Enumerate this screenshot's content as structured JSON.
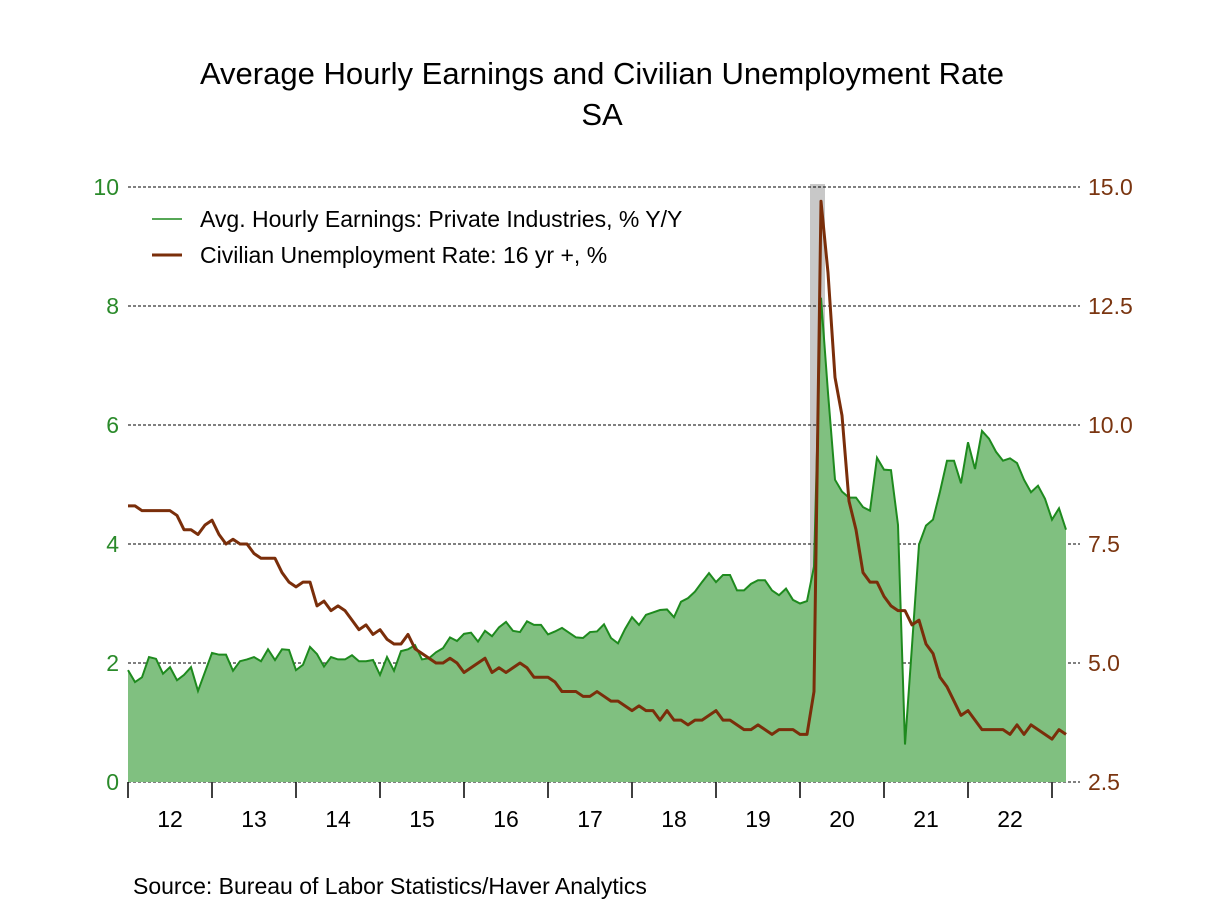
{
  "chart_data": {
    "type": "area+line",
    "title": "Average Hourly Earnings and Civilian Unemployment Rate",
    "subtitle": "SA",
    "source": "Source:  Bureau of Labor Statistics/Haver Analytics",
    "x_start": "2012-01",
    "frequency": "monthly",
    "x_tick_labels": [
      "12",
      "13",
      "14",
      "15",
      "16",
      "17",
      "18",
      "19",
      "20",
      "21",
      "22"
    ],
    "recession_shading": [
      "2020-02",
      "2020-04"
    ],
    "left_axis": {
      "ylim": [
        0,
        10
      ],
      "ticks": [
        "0",
        "2",
        "4",
        "6",
        "8",
        "10"
      ],
      "color": "#2a8a2a"
    },
    "right_axis": {
      "ylim": [
        2.5,
        15.0
      ],
      "ticks": [
        "2.5",
        "5.0",
        "7.5",
        "10.0",
        "12.5",
        "15.0"
      ],
      "color": "#7a3510"
    },
    "grid": "horizontal dashed",
    "legend_placement": "top-left",
    "series": [
      {
        "name": "Avg. Hourly Earnings: Private Industries, % Y/Y",
        "axis": "left",
        "style": "area",
        "color": "#1e8a1e",
        "fill": "#80c080",
        "values": [
          1.88,
          1.68,
          1.76,
          2.1,
          2.07,
          1.82,
          1.93,
          1.71,
          1.8,
          1.93,
          1.53,
          1.85,
          2.17,
          2.14,
          2.14,
          1.87,
          2.03,
          2.06,
          2.1,
          2.03,
          2.23,
          2.05,
          2.23,
          2.22,
          1.88,
          1.97,
          2.27,
          2.15,
          1.94,
          2.1,
          2.06,
          2.06,
          2.13,
          2.03,
          2.03,
          2.05,
          1.8,
          2.1,
          1.87,
          2.2,
          2.23,
          2.3,
          2.06,
          2.08,
          2.18,
          2.25,
          2.43,
          2.37,
          2.49,
          2.51,
          2.36,
          2.54,
          2.45,
          2.6,
          2.69,
          2.54,
          2.52,
          2.7,
          2.64,
          2.64,
          2.48,
          2.53,
          2.59,
          2.51,
          2.43,
          2.42,
          2.52,
          2.53,
          2.65,
          2.42,
          2.33,
          2.57,
          2.77,
          2.64,
          2.81,
          2.85,
          2.89,
          2.9,
          2.77,
          3.03,
          3.09,
          3.2,
          3.36,
          3.51,
          3.36,
          3.48,
          3.48,
          3.22,
          3.22,
          3.33,
          3.39,
          3.39,
          3.22,
          3.14,
          3.25,
          3.06,
          3.0,
          3.04,
          3.62,
          8.14,
          6.54,
          5.08,
          4.88,
          4.78,
          4.78,
          4.62,
          4.56,
          5.45,
          5.25,
          5.24,
          4.32,
          0.63,
          2.29,
          3.99,
          4.31,
          4.41,
          4.88,
          5.4,
          5.4,
          5.02,
          5.71,
          5.26,
          5.9,
          5.77,
          5.55,
          5.4,
          5.44,
          5.36,
          5.08,
          4.87,
          4.98,
          4.76,
          4.41,
          4.6,
          4.24
        ]
      },
      {
        "name": "Civilian Unemployment Rate: 16 yr +, %",
        "axis": "right",
        "style": "line",
        "color": "#7a2e0a",
        "values": [
          8.3,
          8.3,
          8.2,
          8.2,
          8.2,
          8.2,
          8.2,
          8.1,
          7.8,
          7.8,
          7.7,
          7.9,
          8.0,
          7.7,
          7.5,
          7.6,
          7.5,
          7.5,
          7.3,
          7.2,
          7.2,
          7.2,
          6.9,
          6.7,
          6.6,
          6.7,
          6.7,
          6.2,
          6.3,
          6.1,
          6.2,
          6.1,
          5.9,
          5.7,
          5.8,
          5.6,
          5.7,
          5.5,
          5.4,
          5.4,
          5.6,
          5.3,
          5.2,
          5.1,
          5.0,
          5.0,
          5.1,
          5.0,
          4.8,
          4.9,
          5.0,
          5.1,
          4.8,
          4.9,
          4.8,
          4.9,
          5.0,
          4.9,
          4.7,
          4.7,
          4.7,
          4.6,
          4.4,
          4.4,
          4.4,
          4.3,
          4.3,
          4.4,
          4.3,
          4.2,
          4.2,
          4.1,
          4.0,
          4.1,
          4.0,
          4.0,
          3.8,
          4.0,
          3.8,
          3.8,
          3.7,
          3.8,
          3.8,
          3.9,
          4.0,
          3.8,
          3.8,
          3.7,
          3.6,
          3.6,
          3.7,
          3.6,
          3.5,
          3.6,
          3.6,
          3.6,
          3.5,
          3.5,
          4.4,
          14.7,
          13.2,
          11.0,
          10.2,
          8.4,
          7.8,
          6.9,
          6.7,
          6.7,
          6.4,
          6.2,
          6.1,
          6.1,
          5.8,
          5.9,
          5.4,
          5.2,
          4.7,
          4.5,
          4.2,
          3.9,
          4.0,
          3.8,
          3.6,
          3.6,
          3.6,
          3.6,
          3.5,
          3.7,
          3.5,
          3.7,
          3.6,
          3.5,
          3.4,
          3.6,
          3.5
        ]
      }
    ]
  }
}
